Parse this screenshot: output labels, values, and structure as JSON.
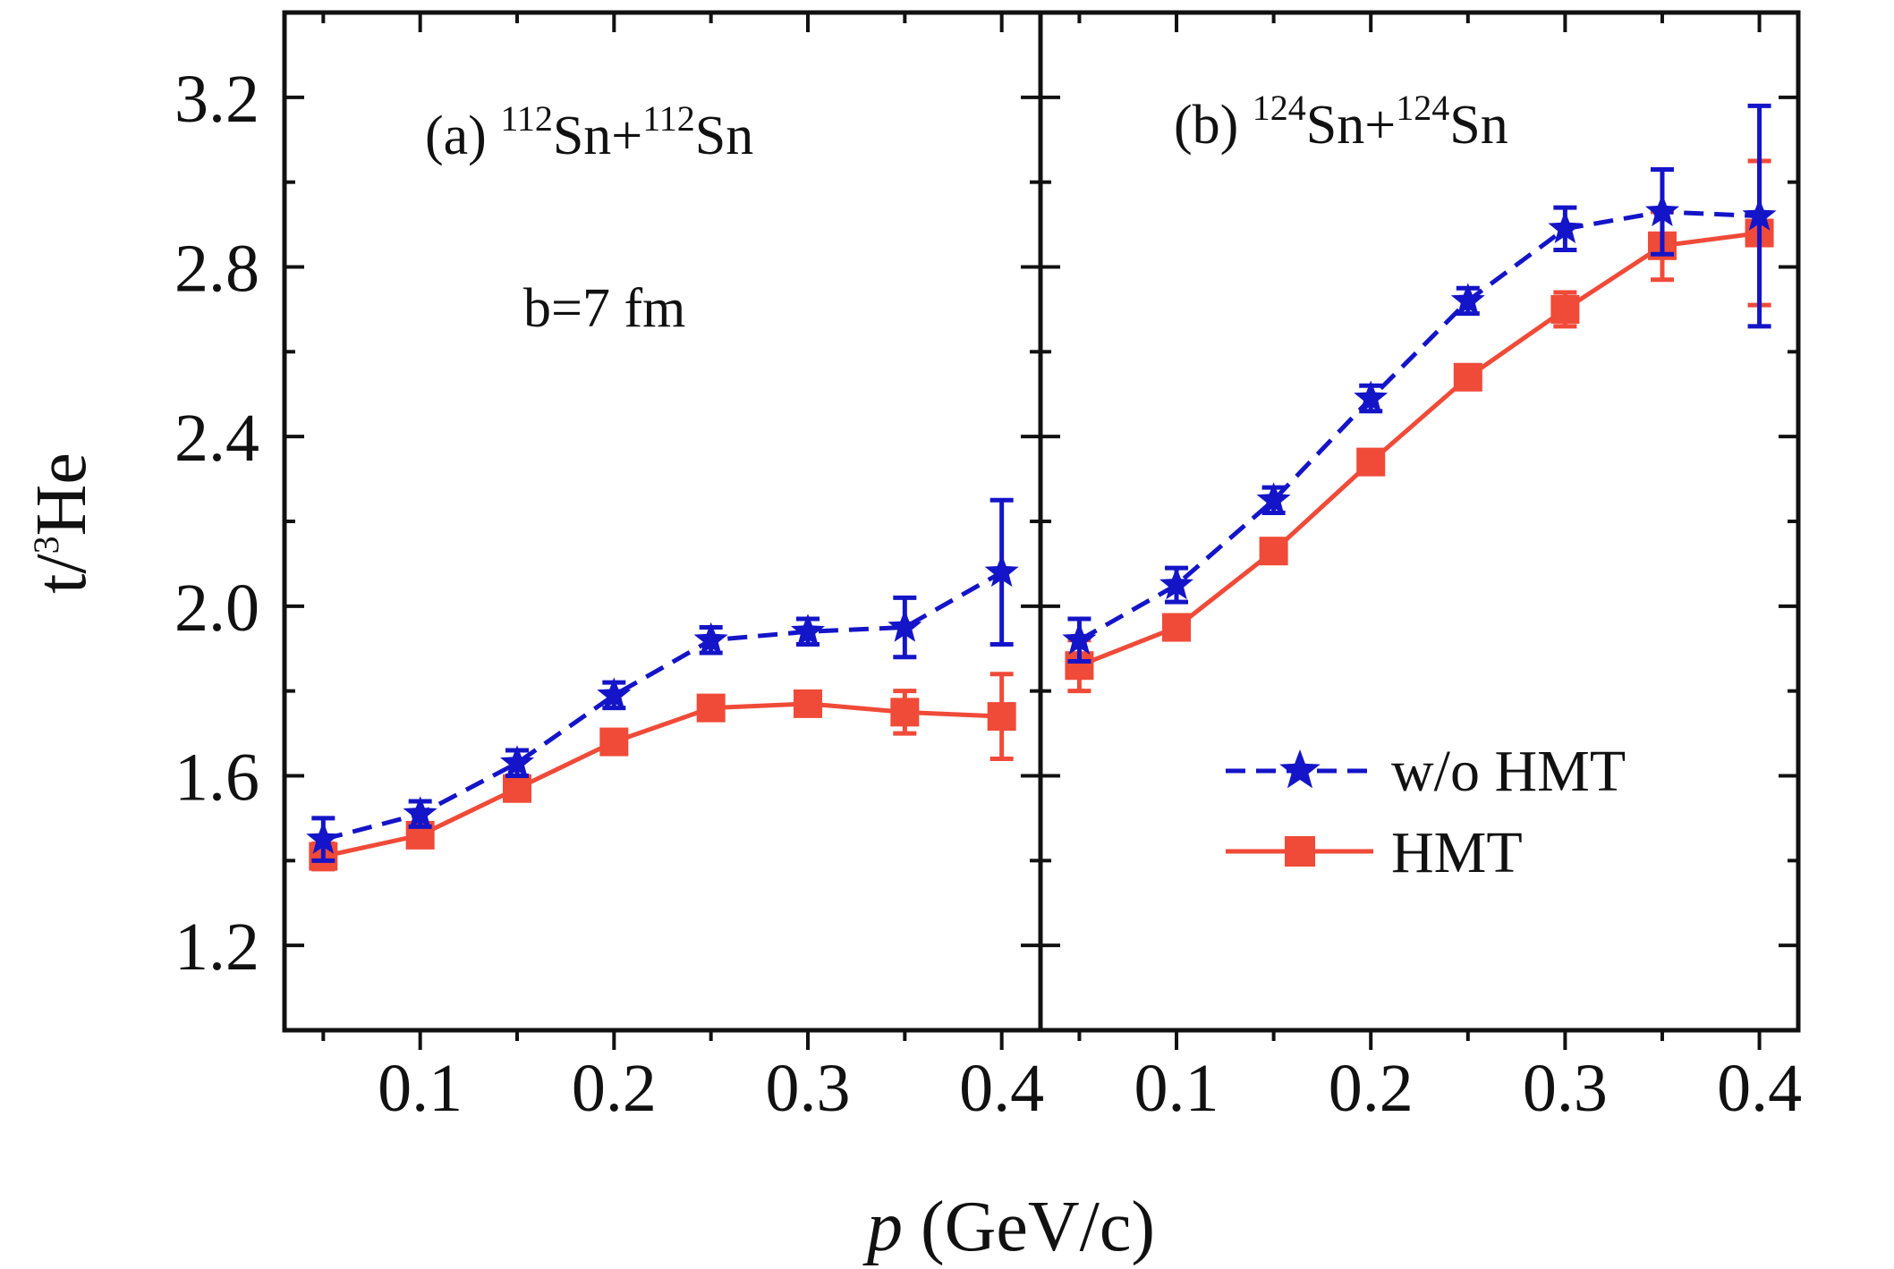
{
  "chart_data": {
    "type": "line",
    "ylabel": {
      "base": "t/",
      "sup": "3",
      "rest": "He"
    },
    "xlabel": {
      "italic": "p",
      "rest": " (GeV/c)"
    },
    "ylim": [
      1.0,
      3.4
    ],
    "xlim": [
      0.03,
      0.42
    ],
    "yticks": [
      1.2,
      1.6,
      2.0,
      2.4,
      2.8,
      3.2
    ],
    "ytick_labels": [
      "1.2",
      "1.6",
      "2.0",
      "2.4",
      "2.8",
      "3.2"
    ],
    "xticks": [
      0.1,
      0.2,
      0.3,
      0.4
    ],
    "xtick_labels": [
      "0.1",
      "0.2",
      "0.3",
      "0.4"
    ],
    "grid": false,
    "legend": {
      "placement": "lower-right of panel (b)",
      "entries": [
        {
          "label": "w/o HMT",
          "series": 0
        },
        {
          "label": "HMT",
          "series": 1
        }
      ]
    },
    "annotation": "b=7 fm",
    "series_styles": [
      {
        "name": "w/o HMT",
        "color": "#1414c8",
        "marker": "star",
        "line": "dashed"
      },
      {
        "name": "HMT",
        "color": "#f04a38",
        "marker": "square",
        "line": "solid"
      }
    ],
    "panels": [
      {
        "title": {
          "prefix": "(a) ",
          "iso1": "112",
          "el1": "Sn+",
          "iso2": "112",
          "el2": "Sn"
        },
        "x": [
          0.05,
          0.1,
          0.15,
          0.2,
          0.25,
          0.3,
          0.35,
          0.4
        ],
        "series": [
          {
            "name": "w/o HMT",
            "values": [
              1.45,
              1.51,
              1.63,
              1.79,
              1.92,
              1.94,
              1.95,
              2.08
            ],
            "errors": [
              0.05,
              0.03,
              0.03,
              0.03,
              0.03,
              0.03,
              0.07,
              0.17
            ]
          },
          {
            "name": "HMT",
            "values": [
              1.41,
              1.46,
              1.57,
              1.68,
              1.76,
              1.77,
              1.75,
              1.74
            ],
            "errors": [
              0.03,
              0.02,
              0.02,
              0.02,
              0.02,
              0.02,
              0.05,
              0.1
            ]
          }
        ]
      },
      {
        "title": {
          "prefix": "(b) ",
          "iso1": "124",
          "el1": "Sn+",
          "iso2": "124",
          "el2": "Sn"
        },
        "x": [
          0.05,
          0.1,
          0.15,
          0.2,
          0.25,
          0.3,
          0.35,
          0.4
        ],
        "series": [
          {
            "name": "w/o HMT",
            "values": [
              1.92,
              2.05,
              2.25,
              2.49,
              2.72,
              2.89,
              2.93,
              2.92
            ],
            "errors": [
              0.05,
              0.04,
              0.03,
              0.03,
              0.03,
              0.05,
              0.1,
              0.26
            ]
          },
          {
            "name": "HMT",
            "values": [
              1.86,
              1.95,
              2.13,
              2.34,
              2.54,
              2.7,
              2.85,
              2.88
            ],
            "errors": [
              0.06,
              0.02,
              0.02,
              0.02,
              0.02,
              0.04,
              0.08,
              0.17
            ]
          }
        ]
      }
    ]
  }
}
